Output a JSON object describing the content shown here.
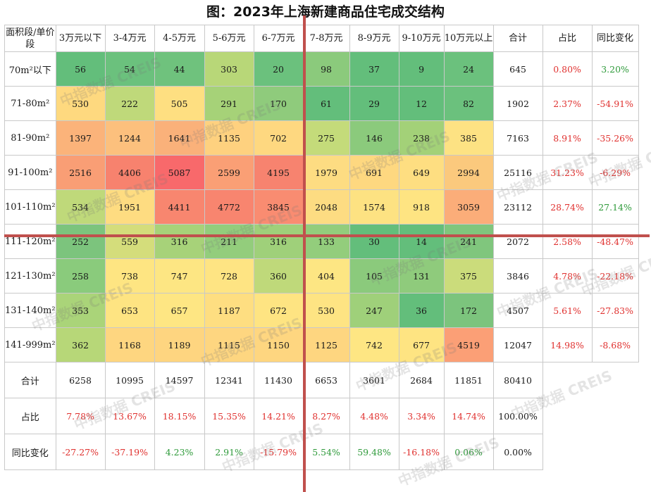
{
  "chart_data": {
    "type": "heatmap",
    "title": "图：2023年上海新建商品住宅成交结构",
    "corner_header": "面积段/单价段",
    "columns": [
      "3万元以下",
      "3-4万元",
      "4-5万元",
      "5-6万元",
      "6-7万元",
      "7-8万元",
      "8-9万元",
      "9-10万元",
      "10万元以上"
    ],
    "summary_columns": [
      "合计",
      "占比",
      "同比变化"
    ],
    "rows": [
      {
        "label": "70m²以下",
        "values": [
          56,
          54,
          44,
          303,
          20,
          98,
          37,
          9,
          24
        ],
        "total": "645",
        "share": "0.80%",
        "yoy": "3.20%"
      },
      {
        "label": "71-80m²",
        "values": [
          530,
          222,
          505,
          291,
          170,
          61,
          29,
          12,
          82
        ],
        "total": "1902",
        "share": "2.37%",
        "yoy": "-54.91%"
      },
      {
        "label": "81-90m²",
        "values": [
          1397,
          1244,
          1641,
          1135,
          702,
          275,
          146,
          238,
          385
        ],
        "total": "7163",
        "share": "8.91%",
        "yoy": "-35.26%"
      },
      {
        "label": "91-100m²",
        "values": [
          2516,
          4406,
          5087,
          2599,
          4195,
          1979,
          691,
          649,
          2994
        ],
        "total": "25116",
        "share": "31.23%",
        "yoy": "-6.29%"
      },
      {
        "label": "101-110m²",
        "values": [
          534,
          1951,
          4411,
          4772,
          3845,
          2048,
          1574,
          918,
          3059
        ],
        "total": "23112",
        "share": "28.74%",
        "yoy": "27.14%"
      },
      {
        "label": "111-120m²",
        "values": [
          252,
          559,
          316,
          211,
          316,
          133,
          30,
          14,
          241
        ],
        "total": "2072",
        "share": "2.58%",
        "yoy": "-48.47%"
      },
      {
        "label": "121-130m²",
        "values": [
          258,
          738,
          747,
          728,
          360,
          404,
          105,
          131,
          375
        ],
        "total": "3846",
        "share": "4.78%",
        "yoy": "-22.18%"
      },
      {
        "label": "131-140m²",
        "values": [
          353,
          653,
          657,
          1187,
          672,
          530,
          247,
          36,
          172
        ],
        "total": "4507",
        "share": "5.61%",
        "yoy": "-27.83%"
      },
      {
        "label": "141-999m²",
        "values": [
          362,
          1168,
          1189,
          1115,
          1150,
          1125,
          742,
          677,
          4519
        ],
        "total": "12047",
        "share": "14.98%",
        "yoy": "-8.68%"
      }
    ],
    "cell_colors": [
      [
        "#63be7b",
        "#6bc17d",
        "#6fc27d",
        "#b8d778",
        "#6bc17d",
        "#8bca7c",
        "#63be7b",
        "#63be7b",
        "#6bc17d"
      ],
      [
        "#fed97f",
        "#bfd97a",
        "#fedf81",
        "#a6d278",
        "#8fcb7c",
        "#63be7b",
        "#63be7b",
        "#63be7b",
        "#6bc17d"
      ],
      [
        "#fbb37a",
        "#fcc07d",
        "#fab17a",
        "#fed17f",
        "#fed880",
        "#c4db7a",
        "#8bca7c",
        "#a3d178",
        "#fde283"
      ],
      [
        "#f99e75",
        "#f7826e",
        "#f8696b",
        "#fa9f75",
        "#f7836f",
        "#fddc82",
        "#fed880",
        "#fede81",
        "#fbc97d"
      ],
      [
        "#bfd97a",
        "#fedc81",
        "#f8866f",
        "#f8856f",
        "#f98c71",
        "#fddc82",
        "#fde282",
        "#fee482",
        "#fbad79"
      ],
      [
        "#7cc47d",
        "#d4dd7b",
        "#a7d279",
        "#93cd7c",
        "#9fd07a",
        "#93cd7c",
        "#63be7b",
        "#63be7b",
        "#80c67d"
      ],
      [
        "#8acb7c",
        "#fee582",
        "#fde683",
        "#fee483",
        "#bfd97a",
        "#fde683",
        "#8bca7c",
        "#8fcb7c",
        "#cbdc7b"
      ],
      [
        "#aad479",
        "#fee482",
        "#fee683",
        "#fede81",
        "#fee482",
        "#fee483",
        "#9fd07a",
        "#63be7b",
        "#7cc47d"
      ],
      [
        "#b7d778",
        "#fed680",
        "#fed580",
        "#fed680",
        "#fed680",
        "#fed680",
        "#fee683",
        "#fee482",
        "#fb9f76"
      ]
    ],
    "totals_row": {
      "label": "合计",
      "values": [
        "6258",
        "10995",
        "14597",
        "12341",
        "11430",
        "6653",
        "3601",
        "2684",
        "11851"
      ],
      "total": "80410"
    },
    "share_row": {
      "label": "占比",
      "values": [
        "7.78%",
        "13.67%",
        "18.15%",
        "15.35%",
        "14.21%",
        "8.27%",
        "4.48%",
        "3.34%",
        "14.74%"
      ],
      "total": "100.00%"
    },
    "yoy_row": {
      "label": "同比变化",
      "values": [
        "-27.27%",
        "-37.19%",
        "4.23%",
        "2.91%",
        "-15.79%",
        "5.54%",
        "59.48%",
        "-16.18%",
        "0.06%"
      ],
      "total": "0.00%"
    }
  },
  "colors": {
    "positive": "#2e9a3a",
    "negative": "#e0312f",
    "share": "#e0312f",
    "divider": "#c0504d"
  },
  "watermark": "中指数据 CREIS"
}
